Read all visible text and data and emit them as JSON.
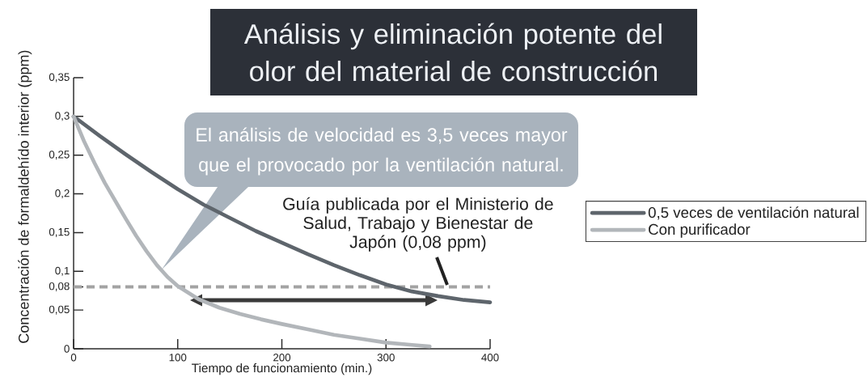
{
  "chart_data": {
    "type": "line",
    "title": "Análisis y eliminación potente del olor del material de construcción",
    "xlabel": "Tiempo de funcionamiento (min.)",
    "ylabel": "Concentración de formaldehído interior (ppm)",
    "series": [
      {
        "name": "0,5 veces de ventilación natural",
        "color": "#5e656c",
        "x": [
          0,
          25,
          50,
          75,
          100,
          125,
          150,
          175,
          200,
          225,
          250,
          275,
          300,
          325,
          350,
          375,
          400
        ],
        "values": [
          0.3,
          0.275,
          0.251,
          0.228,
          0.206,
          0.186,
          0.169,
          0.152,
          0.137,
          0.122,
          0.108,
          0.095,
          0.083,
          0.074,
          0.068,
          0.063,
          0.06
        ]
      },
      {
        "name": "Con purificador",
        "color": "#b2b6ba",
        "x": [
          0,
          10,
          20,
          30,
          40,
          50,
          60,
          70,
          80,
          90,
          100,
          120,
          140,
          160,
          180,
          200,
          225,
          250,
          275,
          300,
          325,
          342
        ],
        "values": [
          0.3,
          0.268,
          0.24,
          0.214,
          0.191,
          0.168,
          0.146,
          0.126,
          0.108,
          0.093,
          0.081,
          0.064,
          0.053,
          0.045,
          0.038,
          0.032,
          0.025,
          0.018,
          0.013,
          0.008,
          0.005,
          0.003
        ]
      }
    ],
    "xlim": [
      0,
      400
    ],
    "ylim": [
      0,
      0.35
    ],
    "xticks": [
      0,
      100,
      200,
      300,
      400
    ],
    "yticks": [
      0,
      {
        "value": 0.05,
        "label": "0,05"
      },
      {
        "value": 0.08,
        "label": "0,08"
      },
      {
        "value": 0.1,
        "label": "0,1"
      },
      {
        "value": 0.15,
        "label": "0,15"
      },
      {
        "value": 0.2,
        "label": "0,2"
      },
      {
        "value": 0.25,
        "label": "0,25"
      },
      {
        "value": 0.3,
        "label": "0,3"
      },
      {
        "value": 0.35,
        "label": "0,35"
      }
    ],
    "ref_lines": [
      {
        "axis": "y",
        "value": 0.08,
        "label": "Guía publicada por el Ministerio de Salud, Trabajo y Bienestar de Japón (0,08 ppm)",
        "color": "#a3a3a3",
        "line_style": "dashed"
      }
    ],
    "annotations": [
      "El análisis de velocidad es 3,5 veces mayor que el provocado por la ventilación natural."
    ],
    "legend": "right",
    "marker": "none",
    "line_style": "solid"
  }
}
